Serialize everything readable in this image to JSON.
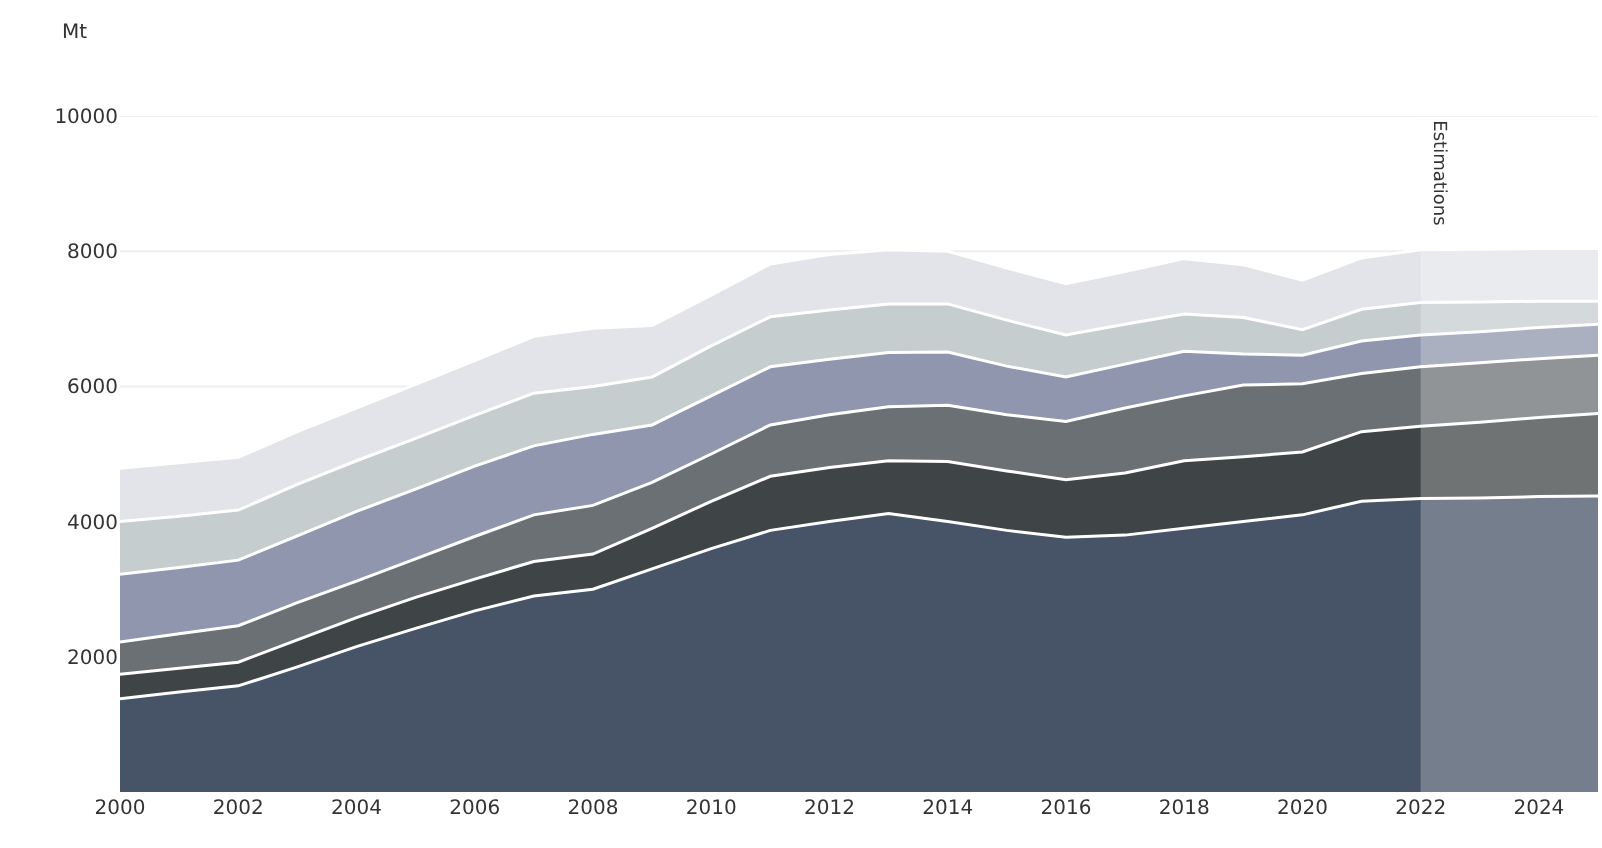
{
  "chart_data": {
    "type": "area",
    "stacked": true,
    "ylabel": "Mt",
    "x": [
      2000,
      2001,
      2002,
      2003,
      2004,
      2005,
      2006,
      2007,
      2008,
      2009,
      2010,
      2011,
      2012,
      2013,
      2014,
      2015,
      2016,
      2017,
      2018,
      2019,
      2020,
      2021,
      2022,
      2023,
      2024,
      2025
    ],
    "series": [
      {
        "color": "#475366",
        "values": [
          1380,
          1480,
          1570,
          1850,
          2150,
          2420,
          2680,
          2900,
          3000,
          3300,
          3600,
          3870,
          4000,
          4120,
          4000,
          3870,
          3770,
          3800,
          3900,
          4000,
          4100,
          4300,
          4340,
          4350,
          4370,
          4380
        ]
      },
      {
        "color": "#3f4446",
        "values": [
          360,
          350,
          350,
          400,
          430,
          460,
          470,
          510,
          520,
          600,
          700,
          800,
          800,
          780,
          890,
          880,
          850,
          920,
          1000,
          960,
          930,
          1030,
          1070,
          1120,
          1170,
          1220
        ]
      },
      {
        "color": "#6b7075",
        "values": [
          480,
          510,
          540,
          550,
          540,
          570,
          630,
          690,
          720,
          680,
          700,
          760,
          780,
          800,
          830,
          830,
          860,
          960,
          960,
          1060,
          1010,
          860,
          880,
          880,
          870,
          860
        ]
      },
      {
        "color": "#8f96ad",
        "values": [
          1000,
          980,
          970,
          990,
          1030,
          1030,
          1040,
          1020,
          1050,
          850,
          860,
          860,
          820,
          800,
          790,
          720,
          660,
          650,
          660,
          460,
          420,
          480,
          470,
          460,
          460,
          460
        ]
      },
      {
        "color": "#c6cdcf",
        "values": [
          780,
          760,
          740,
          760,
          750,
          750,
          750,
          780,
          710,
          710,
          740,
          740,
          730,
          720,
          710,
          680,
          620,
          590,
          550,
          540,
          380,
          470,
          480,
          440,
          390,
          340
        ]
      },
      {
        "color": "#e2e4e9",
        "values": [
          790,
          790,
          780,
          780,
          780,
          800,
          810,
          840,
          860,
          760,
          750,
          780,
          820,
          800,
          780,
          770,
          760,
          780,
          820,
          780,
          730,
          760,
          780,
          780,
          780,
          780
        ]
      }
    ],
    "xlim": [
      2000,
      2025
    ],
    "xticks": [
      2000,
      2002,
      2004,
      2006,
      2008,
      2010,
      2012,
      2014,
      2016,
      2018,
      2020,
      2022,
      2024
    ],
    "ylim": [
      0,
      10000
    ],
    "yticks": [
      2000,
      4000,
      6000,
      8000,
      10000
    ],
    "grid": "y",
    "bands": [
      {
        "axis": "x",
        "from": 2022,
        "to": 2025,
        "label": "Estimations",
        "color": "#ffffff"
      }
    ]
  }
}
